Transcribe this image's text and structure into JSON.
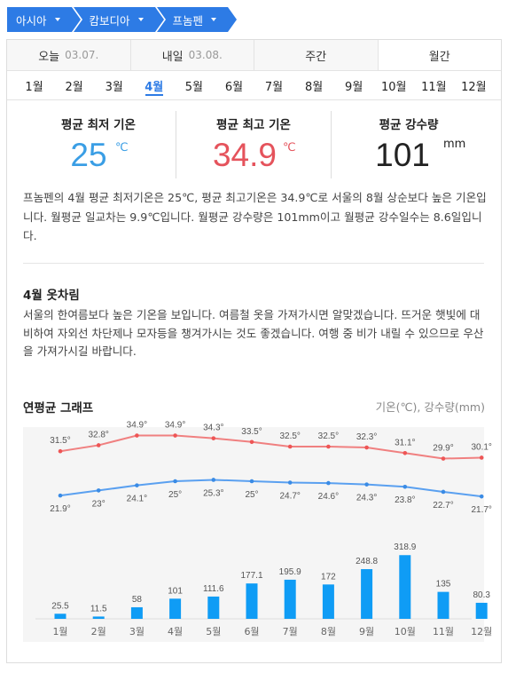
{
  "breadcrumb": [
    {
      "label": "아시아"
    },
    {
      "label": "캄보디아"
    },
    {
      "label": "프놈펜"
    }
  ],
  "tabs": [
    {
      "label": "오늘",
      "date": "03.07."
    },
    {
      "label": "내일",
      "date": "03.08."
    },
    {
      "label": "주간",
      "date": ""
    },
    {
      "label": "월간",
      "date": ""
    }
  ],
  "selected_tab": "월간",
  "months": [
    "1월",
    "2월",
    "3월",
    "4월",
    "5월",
    "6월",
    "7월",
    "8월",
    "9월",
    "10월",
    "11월",
    "12월"
  ],
  "selected_month": "4월",
  "stats": {
    "min": {
      "label": "평균 최저 기온",
      "value": "25",
      "unit": "℃"
    },
    "max": {
      "label": "평균 최고 기온",
      "value": "34.9",
      "unit": "℃"
    },
    "rain": {
      "label": "평균 강수량",
      "value": "101",
      "unit": "mm"
    }
  },
  "description": "프놈펜의 4월 평균 최저기온은 25℃, 평균 최고기온은 34.9℃로 서울의 8월 상순보다 높은 기온입니다. 월평균 일교차는 9.9℃입니다. 월평균 강수량은 101mm이고 월평균 강수일수는 8.6일입니다.",
  "clothes": {
    "title": "4월 옷차림",
    "text": "서울의 한여름보다 높은 기온을 보입니다. 여름철 옷을 가져가시면 알맞겠습니다. 뜨거운 햇빛에 대비하여 자외선 차단제나 모자등을 챙겨가시는 것도 좋겠습니다. 여행 중 비가 내릴 수 있으므로 우산을 가져가시길 바랍니다."
  },
  "graph": {
    "title": "연평균 그래프",
    "legend": "기온(℃), 강수량(mm)"
  },
  "chart_data": {
    "type": "line+bar",
    "categories": [
      "1월",
      "2월",
      "3월",
      "4월",
      "5월",
      "6월",
      "7월",
      "8월",
      "9월",
      "10월",
      "11월",
      "12월"
    ],
    "series": [
      {
        "name": "max_temp",
        "values": [
          31.5,
          32.8,
          34.9,
          34.9,
          34.3,
          33.5,
          32.5,
          32.5,
          32.3,
          31.1,
          29.9,
          30.1
        ],
        "color": "#f08080"
      },
      {
        "name": "min_temp",
        "values": [
          21.9,
          23,
          24.1,
          25,
          25.3,
          25,
          24.7,
          24.6,
          24.3,
          23.8,
          22.7,
          21.7
        ],
        "color": "#5aa0f0"
      },
      {
        "name": "rainfall",
        "values": [
          25.5,
          11.5,
          58,
          101,
          111.6,
          177.1,
          195.9,
          172,
          248.8,
          318.9,
          135,
          80.3
        ],
        "color": "#0f9cf5"
      }
    ],
    "temp_labels_max": [
      "31.5°",
      "32.8°",
      "34.9°",
      "34.9°",
      "34.3°",
      "33.5°",
      "32.5°",
      "32.5°",
      "32.3°",
      "31.1°",
      "29.9°",
      "30.1°"
    ],
    "temp_labels_min": [
      "21.9°",
      "23°",
      "24.1°",
      "25°",
      "25.3°",
      "25°",
      "24.7°",
      "24.6°",
      "24.3°",
      "23.8°",
      "22.7°",
      "21.7°"
    ],
    "rain_labels": [
      "25.5",
      "11.5",
      "58",
      "101",
      "111.6",
      "177.1",
      "195.9",
      "172",
      "248.8",
      "318.9",
      "135",
      "80.3"
    ]
  }
}
